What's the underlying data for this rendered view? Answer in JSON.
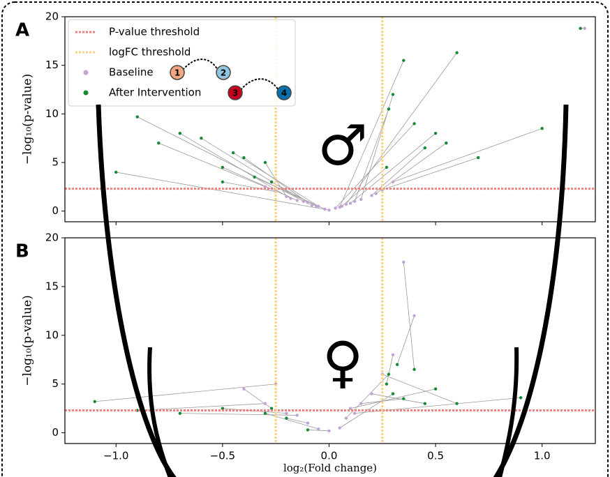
{
  "chart_data": [
    {
      "type": "scatter",
      "label": "A",
      "symbol": "♂",
      "ylabel": "−log₁₀(p-value)",
      "xlim": [
        -1.24,
        1.25
      ],
      "ylim": [
        -1.1,
        20
      ],
      "yticks": [
        0,
        5,
        10,
        15,
        20
      ],
      "thresholds": [
        {
          "name": "P-value threshold",
          "color": "#f08080",
          "axis": "y",
          "values": [
            2.3
          ]
        },
        {
          "name": "logFC threshold",
          "color": "#ffd27f",
          "axis": "x",
          "values": [
            -0.25,
            0.25
          ]
        }
      ],
      "annotations": [
        {
          "text": "1",
          "color": "#f4a582"
        },
        {
          "text": "2",
          "color": "#92c5de"
        },
        {
          "text": "3",
          "color": "#ca0020"
        },
        {
          "text": "4",
          "color": "#0571b0"
        }
      ],
      "series": [
        {
          "name": "Baseline",
          "color": "#c3a3d6",
          "x": [
            -0.05,
            0.03,
            -0.12,
            0.1,
            -0.2,
            0.15,
            -0.08,
            0.05,
            -0.15,
            0.2,
            -0.02,
            0.08,
            -0.1,
            0.12,
            -0.18,
            0.22,
            0.0,
            -0.06,
            0.06,
            -0.25,
            0.25,
            -0.3,
            0.3,
            1.2
          ],
          "values": [
            0.5,
            0.3,
            1.0,
            0.8,
            1.5,
            1.2,
            0.6,
            0.4,
            1.1,
            1.6,
            0.2,
            0.7,
            0.9,
            1.0,
            1.3,
            1.8,
            0.1,
            0.5,
            0.5,
            2.0,
            2.2,
            2.5,
            3.0,
            18.8
          ]
        },
        {
          "name": "After Intervention",
          "color": "#138a36",
          "x": [
            -0.45,
            0.4,
            -0.6,
            0.5,
            -0.3,
            0.3,
            -0.9,
            0.35,
            -0.5,
            0.45,
            -0.35,
            0.6,
            -0.4,
            0.28,
            -0.7,
            0.55,
            -1.0,
            -0.27,
            0.27,
            -0.5,
            0.7,
            -0.8,
            1.0,
            1.18
          ],
          "values": [
            6.0,
            9.0,
            7.5,
            8.0,
            5.0,
            12.0,
            9.7,
            15.5,
            4.5,
            6.5,
            3.5,
            16.3,
            5.5,
            10.5,
            8.0,
            7.0,
            4.0,
            3.0,
            4.5,
            3.0,
            5.5,
            7.0,
            8.5,
            18.8
          ]
        }
      ]
    },
    {
      "type": "scatter",
      "label": "B",
      "symbol": "♀",
      "ylabel": "−log₁₀(p-value)",
      "xlabel": "log₂(Fold change)",
      "xlim": [
        -1.24,
        1.25
      ],
      "ylim": [
        -1.1,
        20
      ],
      "yticks": [
        0,
        5,
        10,
        15,
        20
      ],
      "xticks": [
        {
          "value": -1.0,
          "label": "−1.0"
        },
        {
          "value": -0.5,
          "label": "−0.5"
        },
        {
          "value": 0.0,
          "label": "0.0"
        },
        {
          "value": 0.5,
          "label": "0.5"
        },
        {
          "value": 1.0,
          "label": "1.0"
        }
      ],
      "thresholds": [
        {
          "color": "#f08080",
          "axis": "y",
          "values": [
            2.3
          ]
        },
        {
          "color": "#ffd27f",
          "axis": "x",
          "values": [
            -0.25,
            0.25
          ]
        }
      ],
      "series": [
        {
          "color": "#c3a3d6",
          "x": [
            -0.1,
            0.05,
            -0.2,
            0.15,
            0.08,
            -0.05,
            0.2,
            -0.15,
            0.1,
            0.3,
            -0.3,
            0.25,
            0.4,
            -0.4,
            0.0,
            0.35,
            -0.25,
            0.12
          ],
          "values": [
            1.0,
            0.5,
            2.0,
            3.0,
            1.5,
            0.4,
            4.0,
            1.8,
            2.5,
            8.0,
            3.0,
            6.0,
            12.0,
            4.5,
            0.2,
            17.5,
            5.0,
            2.0
          ]
        },
        {
          "color": "#138a36",
          "x": [
            -0.2,
            0.3,
            -0.5,
            0.35,
            0.28,
            -0.3,
            0.45,
            -0.7,
            0.5,
            0.27,
            -0.9,
            0.6,
            0.32,
            -0.27,
            -0.1,
            0.4,
            -1.1,
            0.9
          ],
          "values": [
            1.5,
            4.0,
            2.5,
            3.5,
            6.0,
            2.0,
            3.0,
            2.0,
            4.5,
            5.0,
            2.3,
            3.0,
            7.0,
            2.5,
            0.3,
            6.5,
            3.2,
            3.6
          ]
        }
      ]
    }
  ]
}
